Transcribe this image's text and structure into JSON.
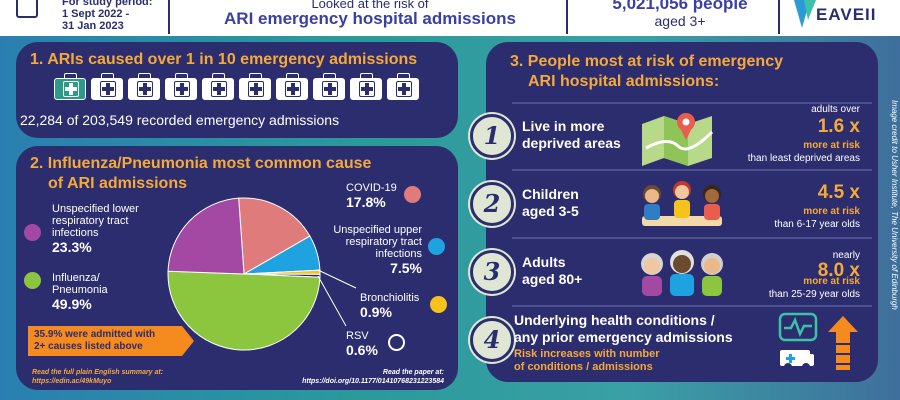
{
  "header": {
    "study_period_label": "For study period:",
    "study_period_start": "1 Sept 2022 -",
    "study_period_end": "31 Jan 2023",
    "looked_at": "Looked at the risk of",
    "title": "ARI emergency hospital admissions",
    "people": "5,021,056 people",
    "aged": "aged 3+",
    "logo": "EAVE II"
  },
  "panel1": {
    "title": "1. ARIs caused over 1 in 10 emergency admissions",
    "kits_total": 10,
    "kits_highlighted": 1,
    "stat": "22,284 of 203,549 recorded emergency admissions"
  },
  "panel2": {
    "title_line1": "2. Influenza/Pneumonia most common cause",
    "title_line2": "of ARI admissions",
    "slices": [
      {
        "name_line1": "Influenza/",
        "name_line2": "Pneumonia",
        "value": "49.9%",
        "pct": 49.9,
        "color": "#8cc63f"
      },
      {
        "name_line1": "Unspecified lower",
        "name_line2": "respiratory tract",
        "name_line3": "infections",
        "value": "23.3%",
        "pct": 23.3,
        "color": "#a349a4"
      },
      {
        "name_line1": "COVID-19",
        "value": "17.8%",
        "pct": 17.8,
        "color": "#e07b7b"
      },
      {
        "name_line1": "Unspecified upper",
        "name_line2": "respiratory tract",
        "name_line3": "infections",
        "value": "7.5%",
        "pct": 7.5,
        "color": "#1ea3e0"
      },
      {
        "name_line1": "Bronchiolitis",
        "value": "0.9%",
        "pct": 0.9,
        "color": "#f6c21b"
      },
      {
        "name_line1": "RSV",
        "value": "0.6%",
        "pct": 0.6,
        "color": "#2b2d6e"
      }
    ],
    "callout_line1": "35.9% were admitted with",
    "callout_line2": "2+ causes listed above",
    "summary_line1": "Read the full plain English summary at:",
    "summary_line2": "https://edin.ac/49kMuyo",
    "paper_line1": "Read the paper at:",
    "paper_line2": "https://doi.org/10.1177/01410768231223584"
  },
  "panel3": {
    "title_line1": "3. People most at risk of emergency",
    "title_line2": "ARI hospital admissions:",
    "rows": [
      {
        "num": "1",
        "label_line1": "Live in more",
        "label_line2": "deprived areas",
        "top": "adults over",
        "value": "1.6 x",
        "more": "more at risk",
        "than": "than least deprived areas"
      },
      {
        "num": "2",
        "label_line1": "Children",
        "label_line2": "aged 3-5",
        "top": "",
        "value": "4.5 x",
        "more": "more at risk",
        "than": "than 6-17 year olds"
      },
      {
        "num": "3",
        "label_line1": "Adults",
        "label_line2": "aged 80+",
        "top": "nearly",
        "value": "8.0 x",
        "more": "more at risk",
        "than": "than 25-29 year olds"
      },
      {
        "num": "4",
        "label_line1": "Underlying health conditions /",
        "label_line2": "any prior emergency admissions",
        "sub_line1": "Risk increases with number",
        "sub_line2": "of conditions / admissions"
      }
    ]
  },
  "credit": "Image credit to Usher Institute, The University of Edinburgh"
}
